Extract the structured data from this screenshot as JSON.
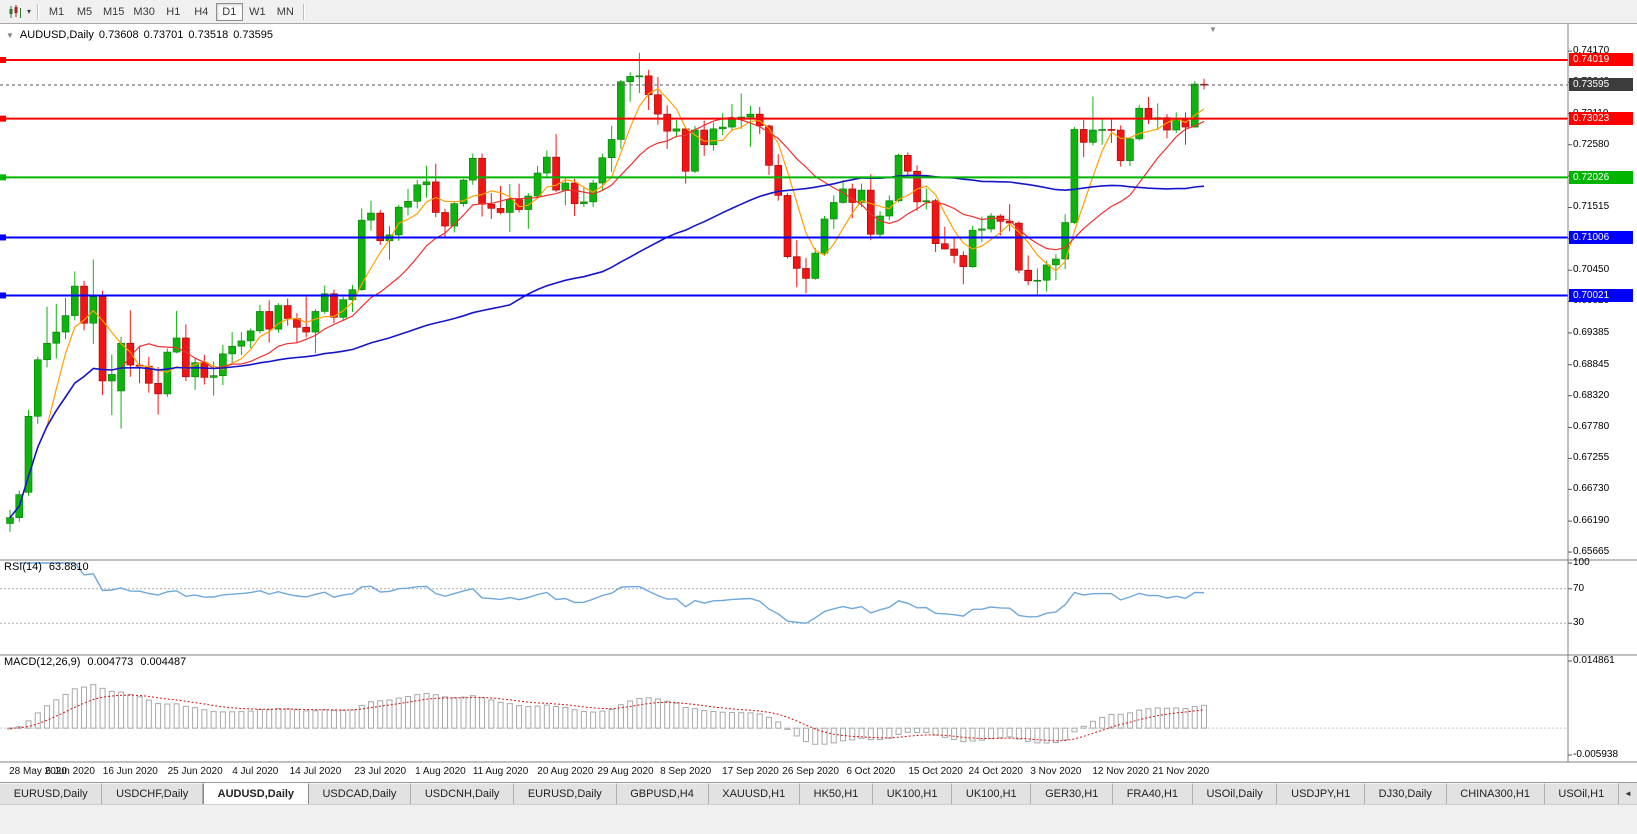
{
  "icons": {
    "collapse": "▼",
    "caret": "▾",
    "shift_marker": "▼",
    "tab_scroll": "◄"
  },
  "toolbar": {
    "timeframes": [
      "M1",
      "M5",
      "M15",
      "M30",
      "H1",
      "H4",
      "D1",
      "W1",
      "MN"
    ],
    "active_timeframe": "D1"
  },
  "chart_header": {
    "symbol": "AUDUSD,Daily",
    "open": "0.73608",
    "high": "0.73701",
    "low": "0.73518",
    "close": "0.73595"
  },
  "panes": {
    "rsi_header": "RSI(14)",
    "rsi_value": "63.8810",
    "macd_header": "MACD(12,26,9)",
    "macd_value_main": "0.004773",
    "macd_value_signal": "0.004487"
  },
  "bottom_tabs": {
    "active_index": 2,
    "tabs": [
      "EURUSD,Daily",
      "USDCHF,Daily",
      "AUDUSD,Daily",
      "USDCAD,Daily",
      "USDCNH,Daily",
      "EURUSD,Daily",
      "GBPUSD,H4",
      "XAUUSD,H1",
      "HK50,H1",
      "UK100,H1",
      "UK100,H1",
      "GER30,H1",
      "FRA40,H1",
      "USOil,Daily",
      "USDJPY,H1",
      "DJ30,Daily",
      "CHINA300,H1",
      "USOil,H1"
    ]
  },
  "chart_data": {
    "type": "candlestick",
    "symbol": "AUDUSD",
    "timeframe": "Daily",
    "title": "AUDUSD,Daily 0.73608 0.73701 0.73518 0.73595",
    "price_axis": {
      "min": 0.6553,
      "max": 0.7463,
      "ticks": [
        "0.74170",
        "0.73640",
        "0.73110",
        "0.72580",
        "0.72050",
        "0.71515",
        "0.70985",
        "0.70450",
        "0.69920",
        "0.69385",
        "0.68845",
        "0.68320",
        "0.67780",
        "0.67255",
        "0.66730",
        "0.66190",
        "0.65665"
      ]
    },
    "x_axis": {
      "labels": [
        {
          "label": "28 May 2020",
          "i": 0
        },
        {
          "label": "6 Jun 2020",
          "i": 6.5
        },
        {
          "label": "16 Jun 2020",
          "i": 13
        },
        {
          "label": "25 Jun 2020",
          "i": 20
        },
        {
          "label": "4 Jul 2020",
          "i": 26.5
        },
        {
          "label": "14 Jul 2020",
          "i": 33
        },
        {
          "label": "23 Jul 2020",
          "i": 40
        },
        {
          "label": "1 Aug 2020",
          "i": 46.5
        },
        {
          "label": "11 Aug 2020",
          "i": 53
        },
        {
          "label": "20 Aug 2020",
          "i": 60
        },
        {
          "label": "29 Aug 2020",
          "i": 66.5
        },
        {
          "label": "8 Sep 2020",
          "i": 73
        },
        {
          "label": "17 Sep 2020",
          "i": 80
        },
        {
          "label": "26 Sep 2020",
          "i": 86.5
        },
        {
          "label": "6 Oct 2020",
          "i": 93
        },
        {
          "label": "15 Oct 2020",
          "i": 100
        },
        {
          "label": "24 Oct 2020",
          "i": 106.5
        },
        {
          "label": "3 Nov 2020",
          "i": 113
        },
        {
          "label": "12 Nov 2020",
          "i": 120
        },
        {
          "label": "21 Nov 2020",
          "i": 126.5
        }
      ]
    },
    "horizontal_lines": [
      {
        "price": 0.74019,
        "label": "0.74019",
        "color": "#FF0000"
      },
      {
        "price": 0.73023,
        "label": "0.73023",
        "color": "#FF0000"
      },
      {
        "price": 0.72026,
        "label": "0.72026",
        "color": "#00B400"
      },
      {
        "price": 0.71006,
        "label": "0.71006",
        "color": "#0000FF"
      },
      {
        "price": 0.70021,
        "label": "0.70021",
        "color": "#0000FF"
      }
    ],
    "current_price": {
      "value": 0.73595,
      "label": "0.73595",
      "color": "#3c3c3c"
    },
    "moving_averages": [
      {
        "name": "fast-ma",
        "period": 5,
        "color": "#FFA000",
        "width": 1.2
      },
      {
        "name": "medium-ma",
        "period": 13,
        "color": "#F03030",
        "width": 1.2
      },
      {
        "name": "slow-ma",
        "period": 55,
        "color": "#1515CC",
        "width": 1.6
      }
    ],
    "candles": {
      "up_color": "#0EB30E",
      "up_border": "#067A06",
      "down_color": "#F01414",
      "down_border": "#A80000",
      "ohlc": [
        [
          0.6615,
          0.6638,
          0.6601,
          0.6625
        ],
        [
          0.6625,
          0.6671,
          0.6618,
          0.6664
        ],
        [
          0.6668,
          0.6808,
          0.6662,
          0.6797
        ],
        [
          0.6797,
          0.6898,
          0.6784,
          0.6893
        ],
        [
          0.6893,
          0.6983,
          0.688,
          0.6921
        ],
        [
          0.6921,
          0.6988,
          0.6895,
          0.694
        ],
        [
          0.694,
          0.6998,
          0.6928,
          0.6968
        ],
        [
          0.6968,
          0.7043,
          0.696,
          0.7018
        ],
        [
          0.7018,
          0.7027,
          0.6943,
          0.6955
        ],
        [
          0.6955,
          0.7063,
          0.692,
          0.7
        ],
        [
          0.7,
          0.701,
          0.6833,
          0.6857
        ],
        [
          0.6857,
          0.6902,
          0.6799,
          0.6868
        ],
        [
          0.684,
          0.6932,
          0.6776,
          0.6921
        ],
        [
          0.6921,
          0.6977,
          0.6864,
          0.6884
        ],
        [
          0.6884,
          0.6917,
          0.6853,
          0.6882
        ],
        [
          0.6882,
          0.6898,
          0.6837,
          0.6853
        ],
        [
          0.6853,
          0.6881,
          0.68,
          0.6835
        ],
        [
          0.6835,
          0.6912,
          0.683,
          0.6906
        ],
        [
          0.6906,
          0.6976,
          0.6904,
          0.693
        ],
        [
          0.693,
          0.6953,
          0.6857,
          0.6864
        ],
        [
          0.6864,
          0.6896,
          0.6842,
          0.6888
        ],
        [
          0.6888,
          0.6901,
          0.6851,
          0.6863
        ],
        [
          0.6863,
          0.689,
          0.6832,
          0.6866
        ],
        [
          0.6866,
          0.6918,
          0.685,
          0.6903
        ],
        [
          0.6903,
          0.694,
          0.6887,
          0.6916
        ],
        [
          0.6916,
          0.694,
          0.6901,
          0.6925
        ],
        [
          0.6925,
          0.6946,
          0.6913,
          0.6942
        ],
        [
          0.6942,
          0.6986,
          0.6938,
          0.6975
        ],
        [
          0.6975,
          0.6994,
          0.6922,
          0.6945
        ],
        [
          0.6945,
          0.6989,
          0.6939,
          0.6985
        ],
        [
          0.6985,
          0.6997,
          0.6951,
          0.6963
        ],
        [
          0.6963,
          0.6972,
          0.6922,
          0.6948
        ],
        [
          0.6948,
          0.7,
          0.6931,
          0.694
        ],
        [
          0.694,
          0.6979,
          0.6904,
          0.6975
        ],
        [
          0.6975,
          0.7019,
          0.6971,
          0.7005
        ],
        [
          0.7005,
          0.7012,
          0.6955,
          0.6965
        ],
        [
          0.6965,
          0.7,
          0.6959,
          0.6995
        ],
        [
          0.6995,
          0.702,
          0.6974,
          0.7012
        ],
        [
          0.7012,
          0.715,
          0.701,
          0.713
        ],
        [
          0.713,
          0.7163,
          0.7112,
          0.7142
        ],
        [
          0.7142,
          0.7147,
          0.7088,
          0.7095
        ],
        [
          0.7095,
          0.712,
          0.7063,
          0.7105
        ],
        [
          0.7105,
          0.7156,
          0.7095,
          0.7152
        ],
        [
          0.7152,
          0.7183,
          0.7138,
          0.7162
        ],
        [
          0.7162,
          0.7198,
          0.715,
          0.719
        ],
        [
          0.719,
          0.7222,
          0.7168,
          0.7195
        ],
        [
          0.7195,
          0.7226,
          0.7135,
          0.7143
        ],
        [
          0.7143,
          0.7149,
          0.71,
          0.712
        ],
        [
          0.712,
          0.7162,
          0.7109,
          0.7158
        ],
        [
          0.7158,
          0.72,
          0.7153,
          0.7198
        ],
        [
          0.7198,
          0.7243,
          0.719,
          0.7235
        ],
        [
          0.7235,
          0.7243,
          0.7136,
          0.7157
        ],
        [
          0.7157,
          0.7176,
          0.7132,
          0.715
        ],
        [
          0.715,
          0.7188,
          0.714,
          0.7143
        ],
        [
          0.7143,
          0.7191,
          0.711,
          0.7165
        ],
        [
          0.7165,
          0.7192,
          0.7143,
          0.7148
        ],
        [
          0.7148,
          0.7176,
          0.7115,
          0.7171
        ],
        [
          0.7171,
          0.7222,
          0.7166,
          0.721
        ],
        [
          0.721,
          0.7248,
          0.7202,
          0.7237
        ],
        [
          0.7237,
          0.7276,
          0.7178,
          0.7181
        ],
        [
          0.7181,
          0.7204,
          0.7155,
          0.7193
        ],
        [
          0.7193,
          0.72,
          0.7137,
          0.7158
        ],
        [
          0.7158,
          0.7186,
          0.7152,
          0.7161
        ],
        [
          0.7161,
          0.7198,
          0.7152,
          0.7193
        ],
        [
          0.7193,
          0.7243,
          0.7181,
          0.7236
        ],
        [
          0.7236,
          0.729,
          0.7212,
          0.7267
        ],
        [
          0.7267,
          0.7368,
          0.7251,
          0.7365
        ],
        [
          0.7365,
          0.7381,
          0.7331,
          0.7374
        ],
        [
          0.7374,
          0.7414,
          0.7346,
          0.7375
        ],
        [
          0.7375,
          0.7385,
          0.7317,
          0.7343
        ],
        [
          0.7343,
          0.7373,
          0.7292,
          0.731
        ],
        [
          0.731,
          0.7325,
          0.7251,
          0.7281
        ],
        [
          0.7281,
          0.73,
          0.727,
          0.7285
        ],
        [
          0.7285,
          0.7288,
          0.7192,
          0.7213
        ],
        [
          0.7213,
          0.729,
          0.721,
          0.7283
        ],
        [
          0.7283,
          0.7299,
          0.7239,
          0.7258
        ],
        [
          0.7258,
          0.7296,
          0.7248,
          0.7285
        ],
        [
          0.7285,
          0.7312,
          0.7274,
          0.7288
        ],
        [
          0.7288,
          0.7327,
          0.7282,
          0.7301
        ],
        [
          0.7301,
          0.7345,
          0.7285,
          0.7305
        ],
        [
          0.7305,
          0.7324,
          0.7254,
          0.731
        ],
        [
          0.731,
          0.7322,
          0.7276,
          0.729
        ],
        [
          0.729,
          0.7292,
          0.7207,
          0.7223
        ],
        [
          0.7223,
          0.7242,
          0.7163,
          0.7172
        ],
        [
          0.7172,
          0.7176,
          0.7065,
          0.7068
        ],
        [
          0.7068,
          0.7096,
          0.7016,
          0.7048
        ],
        [
          0.7048,
          0.7066,
          0.7006,
          0.7031
        ],
        [
          0.7031,
          0.7083,
          0.7029,
          0.7074
        ],
        [
          0.7074,
          0.7137,
          0.7069,
          0.7132
        ],
        [
          0.7132,
          0.7172,
          0.7115,
          0.716
        ],
        [
          0.716,
          0.7198,
          0.7158,
          0.7183
        ],
        [
          0.7183,
          0.7192,
          0.7133,
          0.716
        ],
        [
          0.716,
          0.7192,
          0.7152,
          0.7181
        ],
        [
          0.7181,
          0.7208,
          0.7096,
          0.7106
        ],
        [
          0.7106,
          0.7145,
          0.7101,
          0.7137
        ],
        [
          0.7137,
          0.7172,
          0.713,
          0.7163
        ],
        [
          0.7163,
          0.7243,
          0.716,
          0.724
        ],
        [
          0.724,
          0.7245,
          0.7201,
          0.7213
        ],
        [
          0.7213,
          0.7223,
          0.7146,
          0.7161
        ],
        [
          0.7161,
          0.7184,
          0.7148,
          0.7163
        ],
        [
          0.7163,
          0.7166,
          0.7076,
          0.709
        ],
        [
          0.709,
          0.7119,
          0.708,
          0.7081
        ],
        [
          0.7081,
          0.7099,
          0.7057,
          0.707
        ],
        [
          0.707,
          0.7077,
          0.7021,
          0.7051
        ],
        [
          0.7051,
          0.712,
          0.7049,
          0.7113
        ],
        [
          0.7113,
          0.7136,
          0.7093,
          0.7115
        ],
        [
          0.7115,
          0.7142,
          0.7109,
          0.7137
        ],
        [
          0.7137,
          0.714,
          0.7104,
          0.7128
        ],
        [
          0.7128,
          0.7157,
          0.7111,
          0.7125
        ],
        [
          0.7125,
          0.7128,
          0.704,
          0.7045
        ],
        [
          0.7045,
          0.707,
          0.702,
          0.7027
        ],
        [
          0.7027,
          0.7048,
          0.7002,
          0.7028
        ],
        [
          0.7028,
          0.7061,
          0.7009,
          0.7054
        ],
        [
          0.7054,
          0.7072,
          0.7028,
          0.7064
        ],
        [
          0.7064,
          0.714,
          0.7047,
          0.7126
        ],
        [
          0.7126,
          0.7288,
          0.7123,
          0.7284
        ],
        [
          0.7284,
          0.73,
          0.7237,
          0.7262
        ],
        [
          0.7262,
          0.734,
          0.7257,
          0.7283
        ],
        [
          0.7283,
          0.7302,
          0.7258,
          0.7284
        ],
        [
          0.7284,
          0.7302,
          0.7261,
          0.7283
        ],
        [
          0.7283,
          0.7291,
          0.7221,
          0.7231
        ],
        [
          0.7231,
          0.727,
          0.7222,
          0.7268
        ],
        [
          0.7268,
          0.7326,
          0.7265,
          0.732
        ],
        [
          0.732,
          0.7339,
          0.7293,
          0.7301
        ],
        [
          0.7301,
          0.7328,
          0.7283,
          0.7304
        ],
        [
          0.7304,
          0.731,
          0.7269,
          0.7283
        ],
        [
          0.7283,
          0.7313,
          0.7278,
          0.7303
        ],
        [
          0.7303,
          0.7313,
          0.7258,
          0.7288
        ],
        [
          0.7288,
          0.7366,
          0.7287,
          0.7361
        ],
        [
          0.73608,
          0.73701,
          0.73518,
          0.73595
        ]
      ]
    },
    "indicators": {
      "rsi": {
        "name": "RSI",
        "period": 14,
        "current_value": "63.8810",
        "levels": [
          100,
          70,
          30
        ],
        "axis_labels": [
          "100",
          "70",
          "30"
        ],
        "line_color": "#6FA8DC",
        "level_line_color": "#ADADAD"
      },
      "macd": {
        "name": "MACD",
        "params": "12,26,9",
        "macd_value": "0.004773",
        "signal_value": "0.004487",
        "axis_max": 0.014861,
        "axis_min": -0.005938,
        "axis_labels": [
          "0.014861",
          "-0.005938"
        ],
        "histogram_color": "#A8A8A8",
        "signal_color": "#D41111"
      }
    }
  }
}
